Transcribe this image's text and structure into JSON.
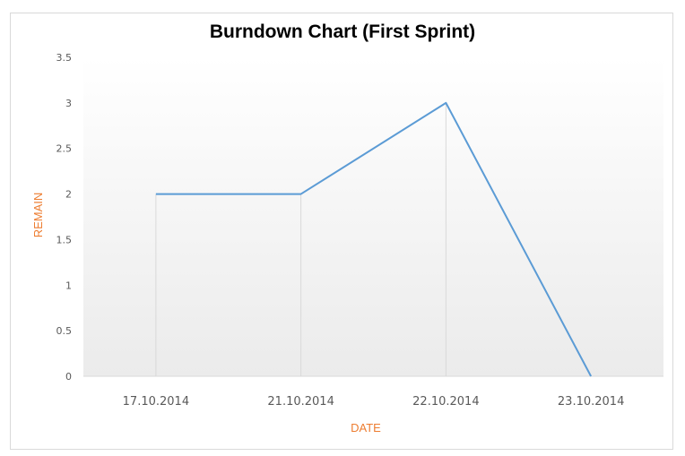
{
  "chart_data": {
    "type": "line",
    "title": "Burndown Chart (First Sprint)",
    "xlabel": "DATE",
    "ylabel": "REMAIN",
    "categories": [
      "17.10.2014",
      "21.10.2014",
      "22.10.2014",
      "23.10.2014"
    ],
    "series": [
      {
        "values": [
          2,
          2,
          3,
          0
        ]
      }
    ],
    "ylim": [
      0,
      3.5
    ],
    "yticks": [
      "0",
      "0.5",
      "1",
      "1.5",
      "2",
      "2.5",
      "3",
      "3.5"
    ],
    "drop_lines": true,
    "grid": false,
    "colors": {
      "line": "#5b9bd5",
      "axis_title": "#ed7d31",
      "drop_line": "#d9d9d9",
      "plot_gradient_top": "#ffffff",
      "plot_gradient_bottom": "#ebebeb"
    }
  }
}
